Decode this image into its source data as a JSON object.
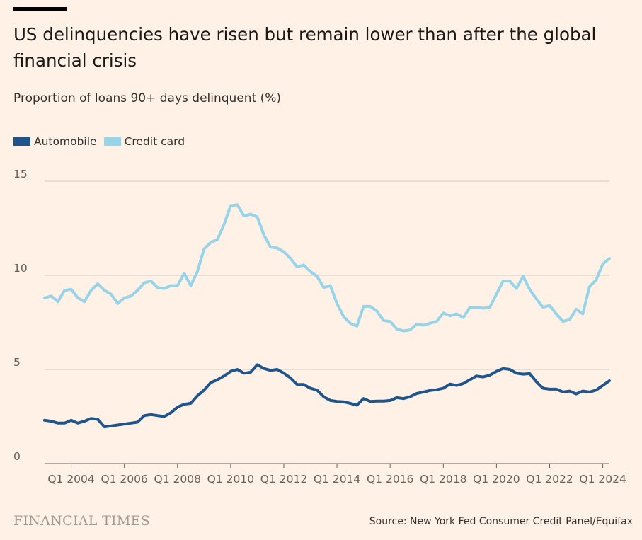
{
  "header": {
    "title": "US delinquencies have risen but remain lower than after the global financial crisis",
    "subtitle": "Proportion of loans 90+ days delinquent (%)"
  },
  "footer": {
    "logo": "FINANCIAL TIMES",
    "source": "Source: New York Fed Consumer Credit Panel/Equifax"
  },
  "colors": {
    "background": "#fff1e5",
    "automobile": "#1e558c",
    "credit_card": "#96d4ea",
    "grid": "#d4cbc3"
  },
  "chart_data": {
    "type": "line",
    "title": "US delinquencies have risen but remain lower than after the global financial crisis",
    "ylabel": "Proportion of loans 90+ days delinquent (%)",
    "xlabel": "",
    "ylim": [
      0,
      15
    ],
    "yticks": [
      0,
      5,
      10,
      15
    ],
    "xlim": [
      "2003 Q1",
      "2024 Q2"
    ],
    "xticks": [
      {
        "top": "Q1",
        "bottom": "2004"
      },
      {
        "top": "Q1",
        "bottom": "2006"
      },
      {
        "top": "Q1",
        "bottom": "2008"
      },
      {
        "top": "Q1",
        "bottom": "2010"
      },
      {
        "top": "Q1",
        "bottom": "2012"
      },
      {
        "top": "Q1",
        "bottom": "2014"
      },
      {
        "top": "Q1",
        "bottom": "2016"
      },
      {
        "top": "Q1",
        "bottom": "2018"
      },
      {
        "top": "Q1",
        "bottom": "2020"
      },
      {
        "top": "Q1",
        "bottom": "2022"
      },
      {
        "top": "Q1",
        "bottom": "2024"
      }
    ],
    "grid": true,
    "legend_position": "top-left",
    "x": [
      "2003 Q1",
      "2003 Q2",
      "2003 Q3",
      "2003 Q4",
      "2004 Q1",
      "2004 Q2",
      "2004 Q3",
      "2004 Q4",
      "2005 Q1",
      "2005 Q2",
      "2005 Q3",
      "2005 Q4",
      "2006 Q1",
      "2006 Q2",
      "2006 Q3",
      "2006 Q4",
      "2007 Q1",
      "2007 Q2",
      "2007 Q3",
      "2007 Q4",
      "2008 Q1",
      "2008 Q2",
      "2008 Q3",
      "2008 Q4",
      "2009 Q1",
      "2009 Q2",
      "2009 Q3",
      "2009 Q4",
      "2010 Q1",
      "2010 Q2",
      "2010 Q3",
      "2010 Q4",
      "2011 Q1",
      "2011 Q2",
      "2011 Q3",
      "2011 Q4",
      "2012 Q1",
      "2012 Q2",
      "2012 Q3",
      "2012 Q4",
      "2013 Q1",
      "2013 Q2",
      "2013 Q3",
      "2013 Q4",
      "2014 Q1",
      "2014 Q2",
      "2014 Q3",
      "2014 Q4",
      "2015 Q1",
      "2015 Q2",
      "2015 Q3",
      "2015 Q4",
      "2016 Q1",
      "2016 Q2",
      "2016 Q3",
      "2016 Q4",
      "2017 Q1",
      "2017 Q2",
      "2017 Q3",
      "2017 Q4",
      "2018 Q1",
      "2018 Q2",
      "2018 Q3",
      "2018 Q4",
      "2019 Q1",
      "2019 Q2",
      "2019 Q3",
      "2019 Q4",
      "2020 Q1",
      "2020 Q2",
      "2020 Q3",
      "2020 Q4",
      "2021 Q1",
      "2021 Q2",
      "2021 Q3",
      "2021 Q4",
      "2022 Q1",
      "2022 Q2",
      "2022 Q3",
      "2022 Q4",
      "2023 Q1",
      "2023 Q2",
      "2023 Q3",
      "2023 Q4",
      "2024 Q1",
      "2024 Q2"
    ],
    "series": [
      {
        "name": "Automobile",
        "color": "#1e558c",
        "values": [
          2.3,
          2.25,
          2.15,
          2.15,
          2.3,
          2.15,
          2.25,
          2.4,
          2.35,
          1.95,
          2.0,
          2.05,
          2.1,
          2.15,
          2.2,
          2.55,
          2.6,
          2.55,
          2.5,
          2.7,
          3.0,
          3.15,
          3.2,
          3.6,
          3.9,
          4.3,
          4.45,
          4.65,
          4.9,
          5.0,
          4.8,
          4.85,
          5.25,
          5.05,
          4.95,
          5.0,
          4.8,
          4.55,
          4.2,
          4.2,
          4.0,
          3.9,
          3.55,
          3.35,
          3.3,
          3.28,
          3.2,
          3.1,
          3.45,
          3.3,
          3.32,
          3.32,
          3.35,
          3.5,
          3.45,
          3.55,
          3.72,
          3.8,
          3.88,
          3.92,
          4.0,
          4.22,
          4.15,
          4.25,
          4.45,
          4.65,
          4.6,
          4.7,
          4.9,
          5.05,
          5.0,
          4.8,
          4.75,
          4.78,
          4.35,
          4.0,
          3.95,
          3.95,
          3.8,
          3.85,
          3.7,
          3.85,
          3.8,
          3.9,
          4.15,
          4.4
        ]
      },
      {
        "name": "Credit card",
        "color": "#96d4ea",
        "values": [
          8.8,
          8.9,
          8.6,
          9.2,
          9.25,
          8.8,
          8.6,
          9.2,
          9.55,
          9.2,
          9.0,
          8.5,
          8.8,
          8.9,
          9.2,
          9.6,
          9.7,
          9.35,
          9.3,
          9.45,
          9.45,
          10.1,
          9.45,
          10.2,
          11.4,
          11.75,
          11.9,
          12.7,
          13.7,
          13.75,
          13.15,
          13.25,
          13.1,
          12.15,
          11.5,
          11.45,
          11.25,
          10.9,
          10.45,
          10.55,
          10.2,
          9.95,
          9.35,
          9.45,
          8.5,
          7.8,
          7.45,
          7.3,
          8.35,
          8.35,
          8.1,
          7.6,
          7.55,
          7.15,
          7.05,
          7.1,
          7.4,
          7.35,
          7.45,
          7.55,
          8.0,
          7.85,
          7.95,
          7.75,
          8.3,
          8.3,
          8.25,
          8.3,
          9.0,
          9.7,
          9.7,
          9.3,
          9.95,
          9.25,
          8.75,
          8.3,
          8.4,
          7.95,
          7.55,
          7.65,
          8.2,
          7.95,
          9.4,
          9.75,
          10.6,
          10.9
        ]
      }
    ]
  }
}
